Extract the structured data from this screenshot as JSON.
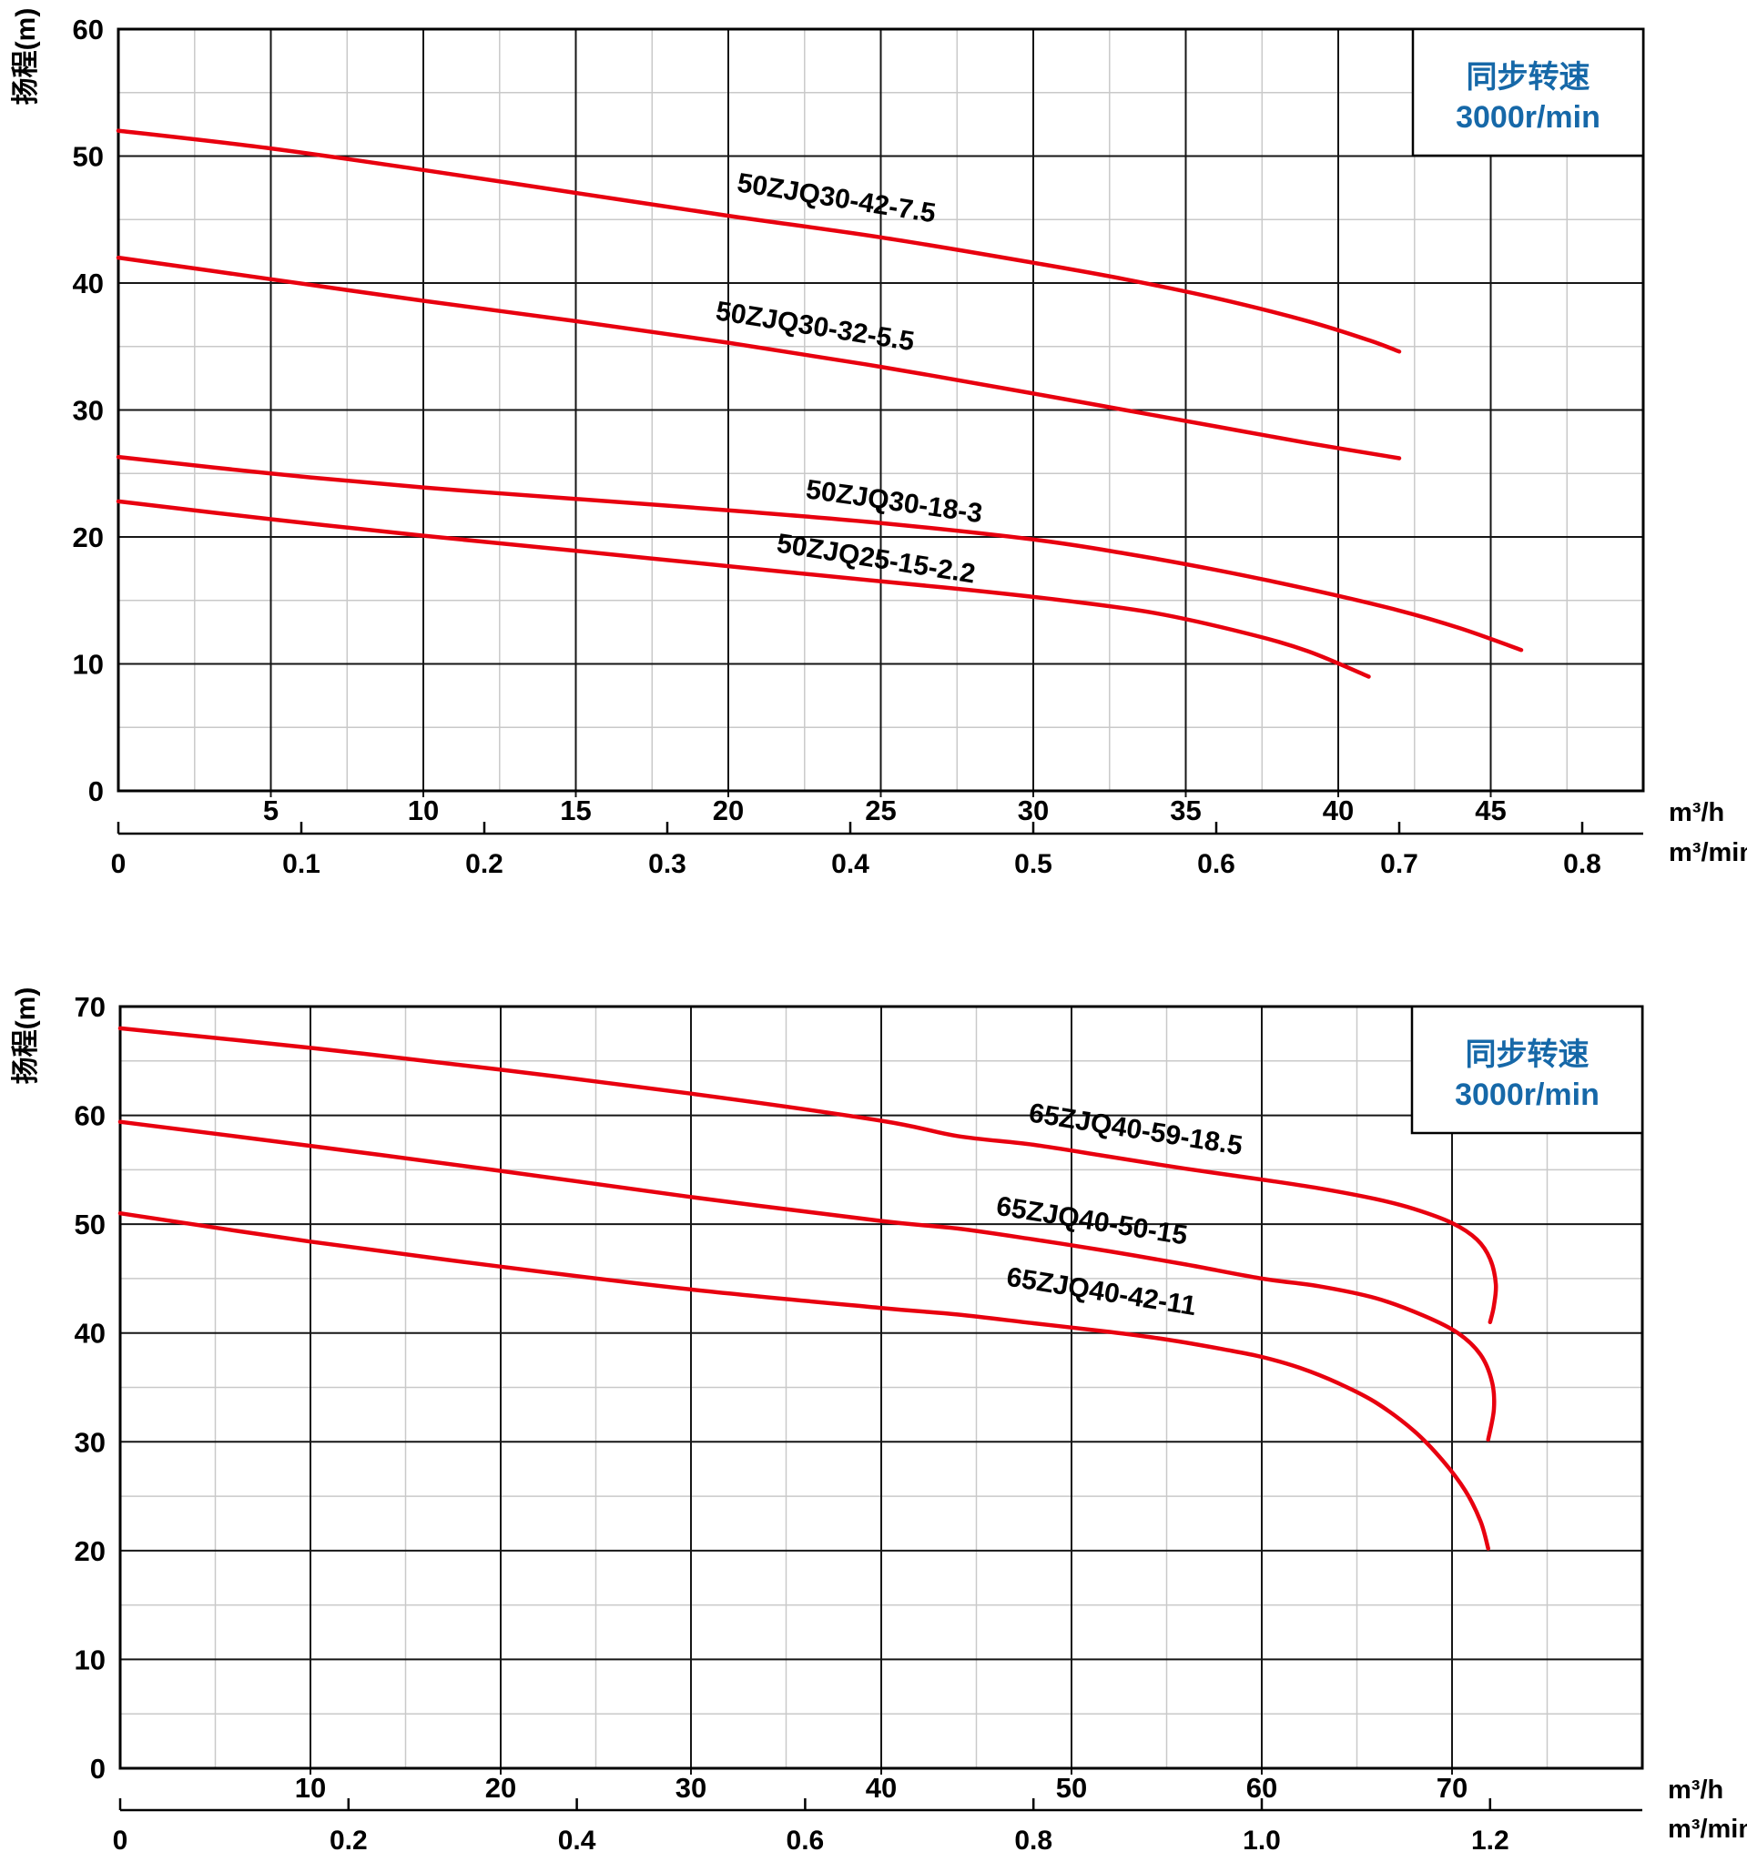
{
  "style": {
    "background": "#ffffff",
    "curve_color": "#e8000f",
    "legend_text_color": "#1668a8",
    "grid_minor_color": "#c9c9c9",
    "grid_major_color": "#161616",
    "border_color": "#000000",
    "label_color": "#000000"
  },
  "chart_data": [
    {
      "type": "line",
      "id": "pump-chart-50zjq",
      "legend_box": {
        "line1": "同步转速",
        "line2": "3000r/min"
      },
      "ylabel": "扬程(m)",
      "y_axis": {
        "min": 0,
        "max": 60,
        "major": 10,
        "minor": 5,
        "tick_values": [
          0,
          10,
          20,
          30,
          40,
          50,
          60
        ]
      },
      "x_axis": {
        "unit": "m³/h",
        "min": 0,
        "max": 50,
        "major": 5,
        "minor": 2.5,
        "tick_values": [
          5,
          10,
          15,
          20,
          25,
          30,
          35,
          40,
          45
        ]
      },
      "x_axis2": {
        "unit": "m³/min",
        "ticks": [
          {
            "value": 0,
            "label": "0"
          },
          {
            "value": 0.1,
            "label": "0.1"
          },
          {
            "value": 0.2,
            "label": "0.2"
          },
          {
            "value": 0.3,
            "label": "0.3"
          },
          {
            "value": 0.4,
            "label": "0.4"
          },
          {
            "value": 0.5,
            "label": "0.5"
          },
          {
            "value": 0.6,
            "label": "0.6"
          },
          {
            "value": 0.7,
            "label": "0.7"
          },
          {
            "value": 0.8,
            "label": "0.8"
          }
        ]
      },
      "series": [
        {
          "name": "50ZJQ30-42-7.5",
          "points": [
            [
              0,
              52
            ],
            [
              5,
              50.6
            ],
            [
              10,
              48.9
            ],
            [
              15,
              47.1
            ],
            [
              20,
              45.3
            ],
            [
              25,
              43.6
            ],
            [
              30,
              41.6
            ],
            [
              33,
              40.3
            ],
            [
              36,
              38.8
            ],
            [
              39,
              37.0
            ],
            [
              41,
              35.5
            ],
            [
              42,
              34.6
            ]
          ],
          "label_anchor": [
            23.5,
            46.0
          ],
          "label_angle": 9
        },
        {
          "name": "50ZJQ30-32-5.5",
          "points": [
            [
              0,
              42
            ],
            [
              5,
              40.3
            ],
            [
              10,
              38.6
            ],
            [
              15,
              37.0
            ],
            [
              20,
              35.3
            ],
            [
              25,
              33.4
            ],
            [
              30,
              31.3
            ],
            [
              33,
              30.0
            ],
            [
              36,
              28.7
            ],
            [
              39,
              27.4
            ],
            [
              42,
              26.2
            ]
          ],
          "label_anchor": [
            22.8,
            35.9
          ],
          "label_angle": 9
        },
        {
          "name": "50ZJQ30-18-3",
          "points": [
            [
              0,
              26.3
            ],
            [
              5,
              25.0
            ],
            [
              10,
              23.9
            ],
            [
              15,
              23.0
            ],
            [
              20,
              22.1
            ],
            [
              25,
              21.1
            ],
            [
              30,
              19.8
            ],
            [
              33,
              18.7
            ],
            [
              36,
              17.4
            ],
            [
              39,
              15.9
            ],
            [
              42,
              14.2
            ],
            [
              44,
              12.8
            ],
            [
              46,
              11.1
            ]
          ],
          "label_anchor": [
            25.4,
            22.1
          ],
          "label_angle": 8
        },
        {
          "name": "50ZJQ25-15-2.2",
          "points": [
            [
              0,
              22.8
            ],
            [
              5,
              21.4
            ],
            [
              10,
              20.1
            ],
            [
              15,
              18.9
            ],
            [
              20,
              17.7
            ],
            [
              25,
              16.5
            ],
            [
              28,
              15.8
            ],
            [
              31,
              15.0
            ],
            [
              34,
              14.0
            ],
            [
              37,
              12.4
            ],
            [
              39,
              11.0
            ],
            [
              41,
              9.0
            ]
          ],
          "label_anchor": [
            24.8,
            17.6
          ],
          "label_angle": 9
        }
      ]
    },
    {
      "type": "line",
      "id": "pump-chart-65zjq",
      "legend_box": {
        "line1": "同步转速",
        "line2": "3000r/min"
      },
      "ylabel": "扬程(m)",
      "y_axis": {
        "min": 0,
        "max": 70,
        "major": 10,
        "minor": 5,
        "tick_values": [
          0,
          10,
          20,
          30,
          40,
          50,
          60,
          70
        ]
      },
      "x_axis": {
        "unit": "m³/h",
        "min": 0,
        "max": 80,
        "major": 10,
        "minor": 5,
        "tick_values": [
          10,
          20,
          30,
          40,
          50,
          60,
          70
        ]
      },
      "x_axis2": {
        "unit": "m³/min",
        "ticks": [
          {
            "value": 0,
            "label": "0"
          },
          {
            "value": 0.2,
            "label": "0.2"
          },
          {
            "value": 0.4,
            "label": "0.4"
          },
          {
            "value": 0.6,
            "label": "0.6"
          },
          {
            "value": 0.8,
            "label": "0.8"
          },
          {
            "value": 1.0,
            "label": "1.0"
          },
          {
            "value": 1.2,
            "label": "1.2"
          }
        ]
      },
      "series": [
        {
          "name": "65ZJQ40-59-18.5",
          "points": [
            [
              0,
              68
            ],
            [
              10,
              66.2
            ],
            [
              20,
              64.2
            ],
            [
              30,
              62.0
            ],
            [
              40,
              59.5
            ],
            [
              44,
              58.1
            ],
            [
              48,
              57.3
            ],
            [
              52,
              56.2
            ],
            [
              56,
              55.1
            ],
            [
              60,
              54.1
            ],
            [
              63,
              53.3
            ],
            [
              66,
              52.3
            ],
            [
              68,
              51.4
            ],
            [
              70,
              50.1
            ],
            [
              71.3,
              48.6
            ],
            [
              72,
              46.8
            ],
            [
              72.3,
              44.5
            ],
            [
              72.2,
              42.5
            ],
            [
              72,
              41.0
            ]
          ],
          "label_anchor": [
            53.3,
            57.9
          ],
          "label_angle": 9
        },
        {
          "name": "65ZJQ40-50-15",
          "points": [
            [
              0,
              59.4
            ],
            [
              10,
              57.2
            ],
            [
              20,
              54.9
            ],
            [
              30,
              52.5
            ],
            [
              40,
              50.3
            ],
            [
              44,
              49.6
            ],
            [
              48,
              48.6
            ],
            [
              52,
              47.5
            ],
            [
              56,
              46.3
            ],
            [
              60,
              45.0
            ],
            [
              63,
              44.3
            ],
            [
              66,
              43.2
            ],
            [
              68.5,
              41.6
            ],
            [
              70.3,
              40.0
            ],
            [
              71.5,
              38.0
            ],
            [
              72.1,
              35.5
            ],
            [
              72.2,
              33.0
            ],
            [
              71.9,
              30.2
            ]
          ],
          "label_anchor": [
            51.0,
            49.5
          ],
          "label_angle": 9
        },
        {
          "name": "65ZJQ40-42-11",
          "points": [
            [
              0,
              51.0
            ],
            [
              10,
              48.4
            ],
            [
              20,
              46.1
            ],
            [
              30,
              44.0
            ],
            [
              40,
              42.3
            ],
            [
              44,
              41.7
            ],
            [
              48,
              40.9
            ],
            [
              52,
              40.1
            ],
            [
              55,
              39.4
            ],
            [
              58,
              38.5
            ],
            [
              60,
              37.8
            ],
            [
              62,
              36.8
            ],
            [
              64,
              35.4
            ],
            [
              66,
              33.6
            ],
            [
              68,
              31.0
            ],
            [
              69.5,
              28.3
            ],
            [
              70.7,
              25.5
            ],
            [
              71.5,
              22.7
            ],
            [
              71.9,
              20.2
            ]
          ],
          "label_anchor": [
            51.5,
            43.0
          ],
          "label_angle": 9
        }
      ]
    }
  ]
}
